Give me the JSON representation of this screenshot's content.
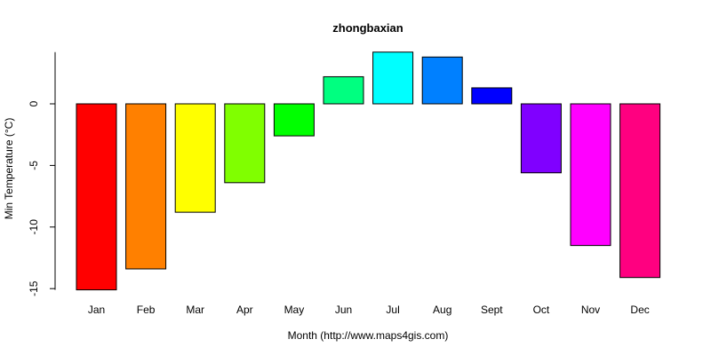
{
  "chart_data": {
    "type": "bar",
    "title": "zhongbaxian",
    "xlabel": "Month (http://www.maps4gis.com)",
    "ylabel": "Min Temperature (°C)",
    "categories": [
      "Jan",
      "Feb",
      "Mar",
      "Apr",
      "May",
      "Jun",
      "Jul",
      "Aug",
      "Sept",
      "Oct",
      "Nov",
      "Dec"
    ],
    "values": [
      -15.1,
      -13.4,
      -8.8,
      -6.4,
      -2.6,
      2.2,
      4.2,
      3.8,
      1.3,
      -5.6,
      -11.5,
      -14.1
    ],
    "colors": [
      "#FF0000",
      "#FF8000",
      "#FFFF00",
      "#80FF00",
      "#00FF00",
      "#00FF80",
      "#00FFFF",
      "#0080FF",
      "#0000FF",
      "#8000FF",
      "#FF00FF",
      "#FF0080"
    ],
    "yticks": [
      0,
      -5,
      -10,
      -15
    ],
    "ylim": [
      -15.1,
      4.2
    ],
    "grid": false,
    "legend": "none"
  }
}
